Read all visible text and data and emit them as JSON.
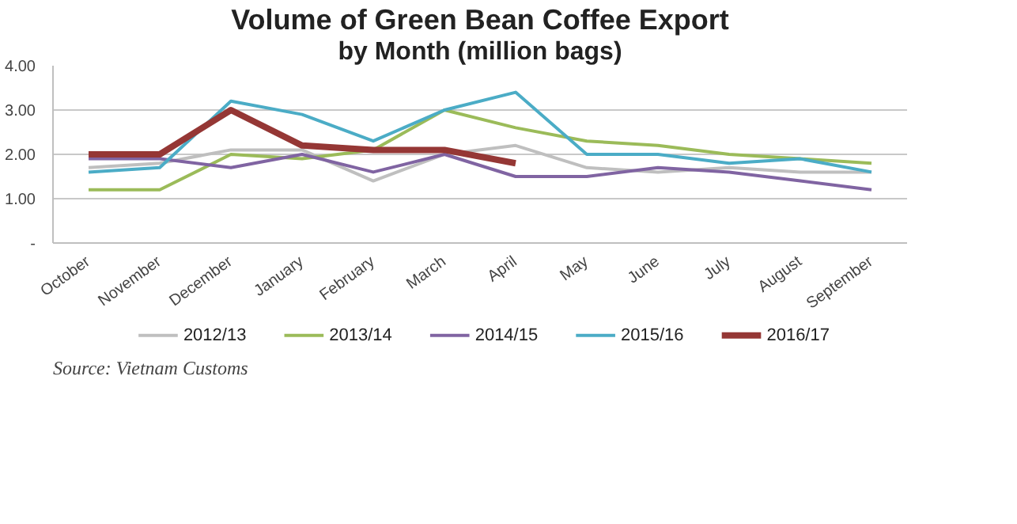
{
  "chart_data": {
    "type": "line",
    "title": "Volume of Green Bean Coffee Export",
    "subtitle": "by Month (million bags)",
    "categories": [
      "October",
      "November",
      "December",
      "January",
      "February",
      "March",
      "April",
      "May",
      "June",
      "July",
      "August",
      "September"
    ],
    "series": [
      {
        "name": "2012/13",
        "color": "#bfbfbf",
        "values": [
          1.7,
          1.8,
          2.1,
          2.1,
          1.4,
          2.0,
          2.2,
          1.7,
          1.6,
          1.7,
          1.6,
          1.6
        ]
      },
      {
        "name": "2013/14",
        "color": "#9bbb59",
        "values": [
          1.2,
          1.2,
          2.0,
          1.9,
          2.1,
          3.0,
          2.6,
          2.3,
          2.2,
          2.0,
          1.9,
          1.8
        ]
      },
      {
        "name": "2014/15",
        "color": "#8064a2",
        "values": [
          1.9,
          1.9,
          1.7,
          2.0,
          1.6,
          2.0,
          1.5,
          1.5,
          1.7,
          1.6,
          1.4,
          1.2
        ]
      },
      {
        "name": "2015/16",
        "color": "#4bacc6",
        "values": [
          1.6,
          1.7,
          3.2,
          2.9,
          2.3,
          3.0,
          3.4,
          2.0,
          2.0,
          1.8,
          1.9,
          1.6
        ]
      },
      {
        "name": "2016/17",
        "color": "#953735",
        "values": [
          2.0,
          2.0,
          3.0,
          2.2,
          2.1,
          2.1,
          1.8,
          null,
          null,
          null,
          null,
          null
        ]
      }
    ],
    "ylim": [
      0,
      4
    ],
    "yticks": [
      {
        "value": 0,
        "label": "-"
      },
      {
        "value": 1,
        "label": "1.00"
      },
      {
        "value": 2,
        "label": "2.00"
      },
      {
        "value": 3,
        "label": "3.00"
      },
      {
        "value": 4,
        "label": "4.00"
      }
    ],
    "grid": "y",
    "legend": "bottom",
    "marker": "none",
    "line_style": "solid",
    "annotations": [
      "Source: Vietnam Customs"
    ]
  }
}
